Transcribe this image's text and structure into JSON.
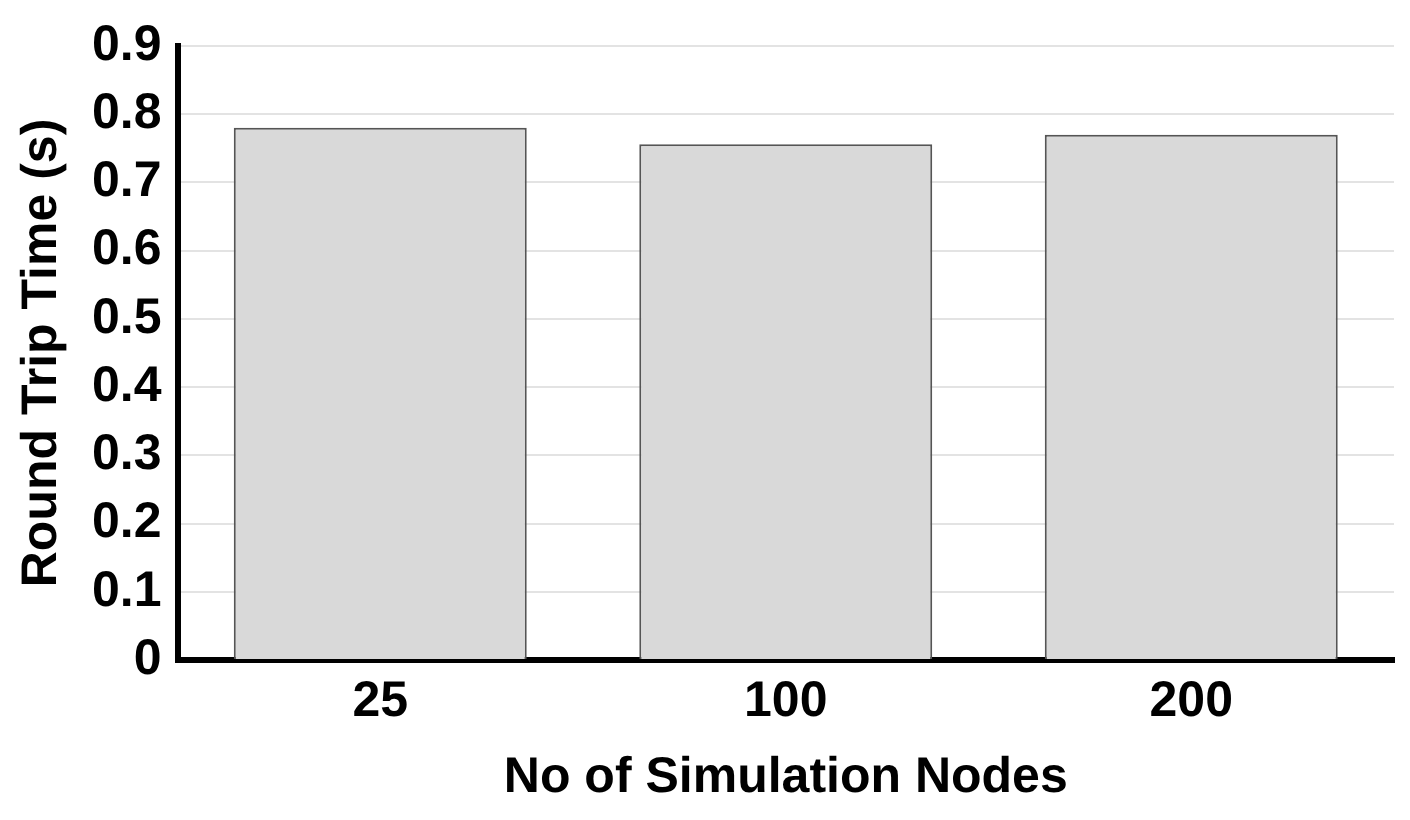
{
  "chart_data": {
    "type": "bar",
    "xlabel": "No of Simulation Nodes",
    "ylabel": "Round Trip Time (s)",
    "categories": [
      "25",
      "100",
      "200"
    ],
    "values": [
      0.78,
      0.756,
      0.77
    ],
    "color": "#d9d9d9",
    "ylim": [
      0,
      0.9
    ],
    "yticks": [
      0,
      0.1,
      0.2,
      0.3,
      0.4,
      0.5,
      0.6,
      0.7,
      0.8,
      0.9
    ],
    "grid": "y",
    "legend": false
  }
}
